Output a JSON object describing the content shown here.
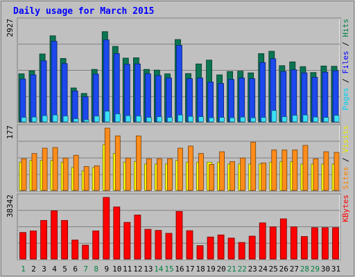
{
  "chart_data": {
    "type": "bar",
    "title": "Daily usage for March 2015",
    "days": [
      "1",
      "2",
      "3",
      "4",
      "5",
      "6",
      "7",
      "8",
      "9",
      "10",
      "11",
      "12",
      "13",
      "14",
      "15",
      "16",
      "17",
      "18",
      "19",
      "20",
      "21",
      "22",
      "23",
      "24",
      "25",
      "26",
      "27",
      "28",
      "29",
      "30",
      "31"
    ],
    "weekend_days": [
      "1",
      "7",
      "8",
      "14",
      "15",
      "21",
      "22",
      "28",
      "29"
    ],
    "colors": {
      "background": "#c0c0c0",
      "border": "#808080",
      "title": "#0000ff",
      "hits": "#0b7553",
      "files": "#1c48ed",
      "pages": "#3ae0f8",
      "visits": "#ffff00",
      "sites": "#ff8c1a",
      "kbytes": "#ff0000",
      "weekday_label": "#000000",
      "weekend_label": "#007f40"
    },
    "panels": [
      {
        "id": "hits_files_pages",
        "ymax_label": "2927",
        "ymax": 2927,
        "ylabel_parts": [
          {
            "text": "Pages",
            "color": "#00d0f0"
          },
          {
            "text": " / ",
            "color": "#000000"
          },
          {
            "text": "Files",
            "color": "#0000ff"
          },
          {
            "text": " / ",
            "color": "#000000"
          },
          {
            "text": "Hits",
            "color": "#007f40"
          }
        ],
        "series": [
          {
            "name": "Hits",
            "color": "#0b7553",
            "values": [
              1400,
              1490,
              1980,
              2510,
              1850,
              990,
              830,
              1530,
              2630,
              2200,
              1860,
              1870,
              1530,
              1510,
              1400,
              2400,
              1410,
              1690,
              1800,
              1370,
              1470,
              1480,
              1430,
              1990,
              2060,
              1640,
              1750,
              1610,
              1440,
              1630,
              1620
            ]
          },
          {
            "name": "Files",
            "color": "#1c48ed",
            "values": [
              1250,
              1370,
              1780,
              2350,
              1700,
              900,
              730,
              1390,
              2390,
              1990,
              1680,
              1690,
              1400,
              1350,
              1280,
              2230,
              1260,
              1280,
              1160,
              1120,
              1240,
              1280,
              1260,
              1730,
              1840,
              1470,
              1520,
              1430,
              1300,
              1450,
              1490
            ]
          },
          {
            "name": "Pages",
            "color": "#3ae0f8",
            "values": [
              130,
              140,
              180,
              200,
              170,
              90,
              60,
              170,
              310,
              230,
              180,
              170,
              130,
              150,
              130,
              200,
              160,
              150,
              120,
              130,
              120,
              140,
              120,
              130,
              330,
              150,
              190,
              200,
              140,
              130,
              190
            ]
          }
        ]
      },
      {
        "id": "visits_sites",
        "ymax_label": "177",
        "ymax": 177,
        "ylabel_parts": [
          {
            "text": "Sites",
            "color": "#ff8000"
          },
          {
            "text": " / ",
            "color": "#000000"
          },
          {
            "text": "Visits",
            "color": "#e8e800"
          }
        ],
        "series": [
          {
            "name": "Visits",
            "color": "#ffff00",
            "values": [
              80,
              85,
              85,
              85,
              80,
              65,
              55,
              65,
              130,
              105,
              80,
              82,
              75,
              75,
              75,
              85,
              80,
              80,
              80,
              80,
              75,
              75,
              75,
              75,
              80,
              82,
              82,
              75,
              75,
              75,
              75
            ]
          },
          {
            "name": "Sites",
            "color": "#ff8c1a",
            "values": [
              90,
              105,
              120,
              122,
              92,
              100,
              68,
              70,
              177,
              155,
              92,
              155,
              90,
              90,
              90,
              120,
              126,
              105,
              74,
              110,
              82,
              92,
              137,
              78,
              115,
              115,
              115,
              128,
              90,
              110,
              108
            ]
          }
        ]
      },
      {
        "id": "kbytes",
        "ymax_label": "38342",
        "ymax": 38342,
        "ylabel_parts": [
          {
            "text": "KBytes",
            "color": "#ff0000"
          }
        ],
        "series": [
          {
            "name": "KBytes",
            "color": "#ff0000",
            "values": [
              16500,
              17500,
              24000,
              30000,
              24000,
              11800,
              8600,
              17500,
              38342,
              32400,
              22800,
              27400,
              18500,
              17800,
              16000,
              29600,
              17600,
              8300,
              13700,
              15000,
              13000,
              10300,
              14200,
              22500,
              20000,
              25000,
              20000,
              14000,
              19500,
              19500,
              19500
            ]
          }
        ]
      }
    ]
  }
}
